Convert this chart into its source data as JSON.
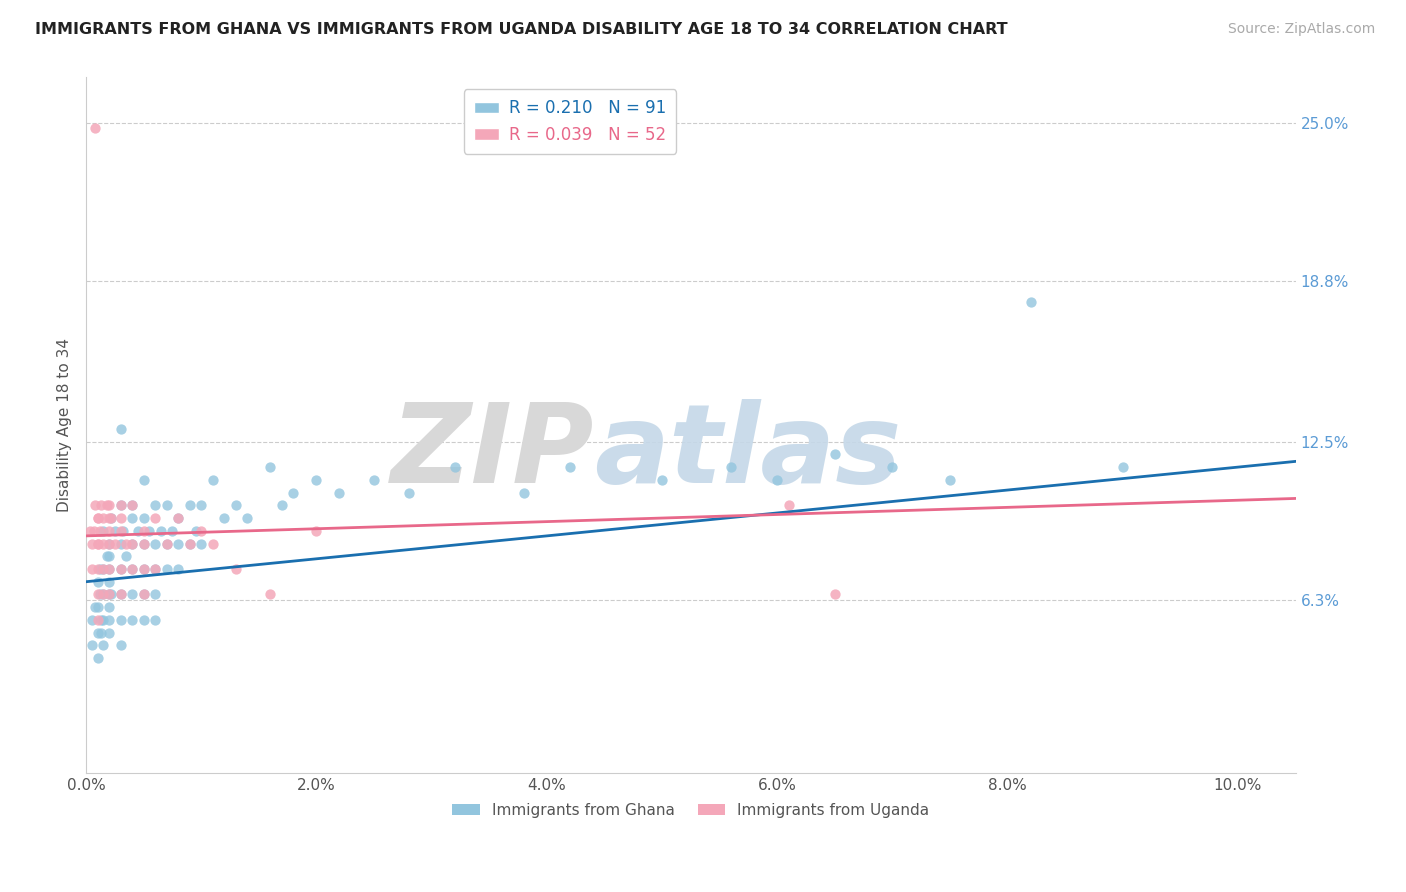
{
  "title": "IMMIGRANTS FROM GHANA VS IMMIGRANTS FROM UGANDA DISABILITY AGE 18 TO 34 CORRELATION CHART",
  "source": "Source: ZipAtlas.com",
  "ylabel": "Disability Age 18 to 34",
  "xlim": [
    0.0,
    0.105
  ],
  "ylim": [
    -0.005,
    0.268
  ],
  "xtick_labels": [
    "0.0%",
    "2.0%",
    "4.0%",
    "6.0%",
    "8.0%",
    "10.0%"
  ],
  "xtick_vals": [
    0.0,
    0.02,
    0.04,
    0.06,
    0.08,
    0.1
  ],
  "ytick_labels": [
    "6.3%",
    "12.5%",
    "18.8%",
    "25.0%"
  ],
  "ytick_vals": [
    0.063,
    0.125,
    0.188,
    0.25
  ],
  "ghana_color": "#92c5de",
  "uganda_color": "#f4a7b9",
  "ghana_line_color": "#1a6faf",
  "uganda_line_color": "#e8688a",
  "ghana_R": 0.21,
  "ghana_N": 91,
  "uganda_R": 0.039,
  "uganda_N": 52,
  "ghana_x": [
    0.0005,
    0.0005,
    0.0008,
    0.001,
    0.001,
    0.001,
    0.001,
    0.0012,
    0.0012,
    0.0013,
    0.0013,
    0.0015,
    0.0015,
    0.0015,
    0.0015,
    0.0015,
    0.0018,
    0.002,
    0.002,
    0.002,
    0.002,
    0.002,
    0.002,
    0.002,
    0.002,
    0.0022,
    0.0022,
    0.0025,
    0.003,
    0.003,
    0.003,
    0.003,
    0.003,
    0.003,
    0.003,
    0.0032,
    0.0035,
    0.004,
    0.004,
    0.004,
    0.004,
    0.004,
    0.004,
    0.0045,
    0.005,
    0.005,
    0.005,
    0.005,
    0.005,
    0.005,
    0.0055,
    0.006,
    0.006,
    0.006,
    0.006,
    0.006,
    0.0065,
    0.007,
    0.007,
    0.007,
    0.0075,
    0.008,
    0.008,
    0.008,
    0.009,
    0.009,
    0.0095,
    0.01,
    0.01,
    0.011,
    0.012,
    0.013,
    0.014,
    0.016,
    0.017,
    0.018,
    0.02,
    0.022,
    0.025,
    0.028,
    0.032,
    0.038,
    0.042,
    0.05,
    0.056,
    0.06,
    0.065,
    0.07,
    0.075,
    0.082,
    0.09
  ],
  "ghana_y": [
    0.055,
    0.045,
    0.06,
    0.07,
    0.05,
    0.06,
    0.04,
    0.075,
    0.065,
    0.055,
    0.05,
    0.09,
    0.075,
    0.065,
    0.055,
    0.045,
    0.08,
    0.085,
    0.075,
    0.065,
    0.055,
    0.05,
    0.08,
    0.07,
    0.06,
    0.095,
    0.065,
    0.09,
    0.1,
    0.085,
    0.075,
    0.065,
    0.055,
    0.045,
    0.13,
    0.09,
    0.08,
    0.095,
    0.085,
    0.075,
    0.065,
    0.055,
    0.1,
    0.09,
    0.095,
    0.085,
    0.075,
    0.065,
    0.055,
    0.11,
    0.09,
    0.1,
    0.085,
    0.075,
    0.065,
    0.055,
    0.09,
    0.1,
    0.085,
    0.075,
    0.09,
    0.095,
    0.085,
    0.075,
    0.1,
    0.085,
    0.09,
    0.1,
    0.085,
    0.11,
    0.095,
    0.1,
    0.095,
    0.115,
    0.1,
    0.105,
    0.11,
    0.105,
    0.11,
    0.105,
    0.115,
    0.105,
    0.115,
    0.11,
    0.115,
    0.11,
    0.12,
    0.115,
    0.11,
    0.18,
    0.115
  ],
  "uganda_x": [
    0.0003,
    0.0005,
    0.0005,
    0.0007,
    0.0008,
    0.001,
    0.001,
    0.001,
    0.001,
    0.001,
    0.001,
    0.001,
    0.0012,
    0.0013,
    0.0015,
    0.0015,
    0.0015,
    0.0015,
    0.0018,
    0.002,
    0.002,
    0.002,
    0.002,
    0.002,
    0.002,
    0.0022,
    0.0025,
    0.003,
    0.003,
    0.003,
    0.003,
    0.003,
    0.0035,
    0.004,
    0.004,
    0.004,
    0.005,
    0.005,
    0.005,
    0.005,
    0.006,
    0.006,
    0.007,
    0.008,
    0.009,
    0.01,
    0.011,
    0.013,
    0.016,
    0.02,
    0.061,
    0.065
  ],
  "uganda_y": [
    0.09,
    0.085,
    0.075,
    0.09,
    0.1,
    0.095,
    0.085,
    0.075,
    0.065,
    0.055,
    0.095,
    0.085,
    0.09,
    0.1,
    0.095,
    0.085,
    0.075,
    0.065,
    0.1,
    0.095,
    0.085,
    0.1,
    0.075,
    0.065,
    0.09,
    0.095,
    0.085,
    0.1,
    0.09,
    0.075,
    0.065,
    0.095,
    0.085,
    0.1,
    0.085,
    0.075,
    0.09,
    0.085,
    0.075,
    0.065,
    0.095,
    0.075,
    0.085,
    0.095,
    0.085,
    0.09,
    0.085,
    0.075,
    0.065,
    0.09,
    0.1,
    0.065
  ]
}
